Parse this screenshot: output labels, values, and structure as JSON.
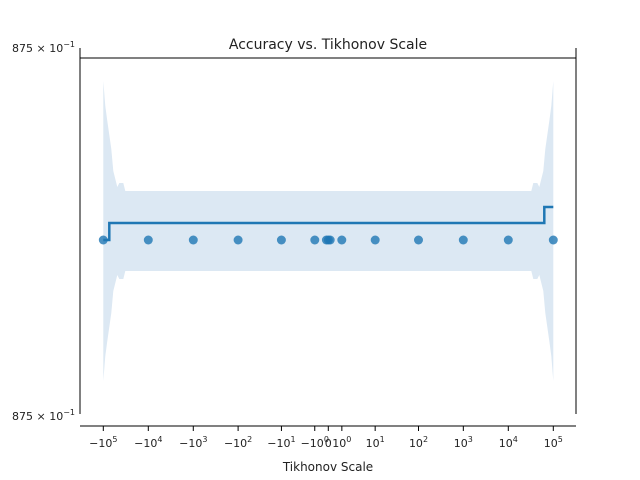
{
  "chart_data": {
    "type": "scatter",
    "title": "Accuracy vs. Tikhonov Scale",
    "xlabel": "Tikhonov Scale",
    "ylabel": "",
    "xscale": "symlog",
    "yscale": "log",
    "x_tick_labels": [
      {
        "value": -100000,
        "base": "−",
        "mant": "10",
        "exp": "5"
      },
      {
        "value": -10000,
        "base": "−",
        "mant": "10",
        "exp": "4"
      },
      {
        "value": -1000,
        "base": "−",
        "mant": "10",
        "exp": "3"
      },
      {
        "value": -100,
        "base": "−",
        "mant": "10",
        "exp": "2"
      },
      {
        "value": -10,
        "base": "−",
        "mant": "10",
        "exp": "1"
      },
      {
        "value": -1,
        "base": "−",
        "mant": "10",
        "exp": "0"
      },
      {
        "value": 0,
        "base": "",
        "mant": "0",
        "exp": ""
      },
      {
        "value": 1,
        "base": "",
        "mant": "10",
        "exp": "0"
      },
      {
        "value": 10,
        "base": "",
        "mant": "10",
        "exp": "1"
      },
      {
        "value": 100,
        "base": "",
        "mant": "10",
        "exp": "2"
      },
      {
        "value": 1000,
        "base": "",
        "mant": "10",
        "exp": "3"
      },
      {
        "value": 10000,
        "base": "",
        "mant": "10",
        "exp": "4"
      },
      {
        "value": 100000,
        "base": "",
        "mant": "10",
        "exp": "5"
      }
    ],
    "y_tick_labels": [
      {
        "position": "top",
        "mant_prefix": "875",
        "sep": "×",
        "base": "10",
        "exp": "−1"
      },
      {
        "position": "bottom",
        "mant_prefix": "875",
        "sep": "×",
        "base": "10",
        "exp": "−1"
      }
    ],
    "points": [
      {
        "x": -100000,
        "y": 0.875
      },
      {
        "x": -10000,
        "y": 0.875
      },
      {
        "x": -1000,
        "y": 0.875
      },
      {
        "x": -100,
        "y": 0.875
      },
      {
        "x": -10,
        "y": 0.875
      },
      {
        "x": -1,
        "y": 0.875
      },
      {
        "x": -0.1,
        "y": 0.875
      },
      {
        "x": 0,
        "y": 0.875
      },
      {
        "x": 0.1,
        "y": 0.875
      },
      {
        "x": 1,
        "y": 0.875
      },
      {
        "x": 10,
        "y": 0.875
      },
      {
        "x": 100,
        "y": 0.875
      },
      {
        "x": 1000,
        "y": 0.875
      },
      {
        "x": 10000,
        "y": 0.875
      },
      {
        "x": 100000,
        "y": 0.875
      }
    ],
    "colors": {
      "points": "#1f77b4",
      "line": "#1f77b4",
      "band": "#dce8f3",
      "axes": "#000000"
    }
  }
}
